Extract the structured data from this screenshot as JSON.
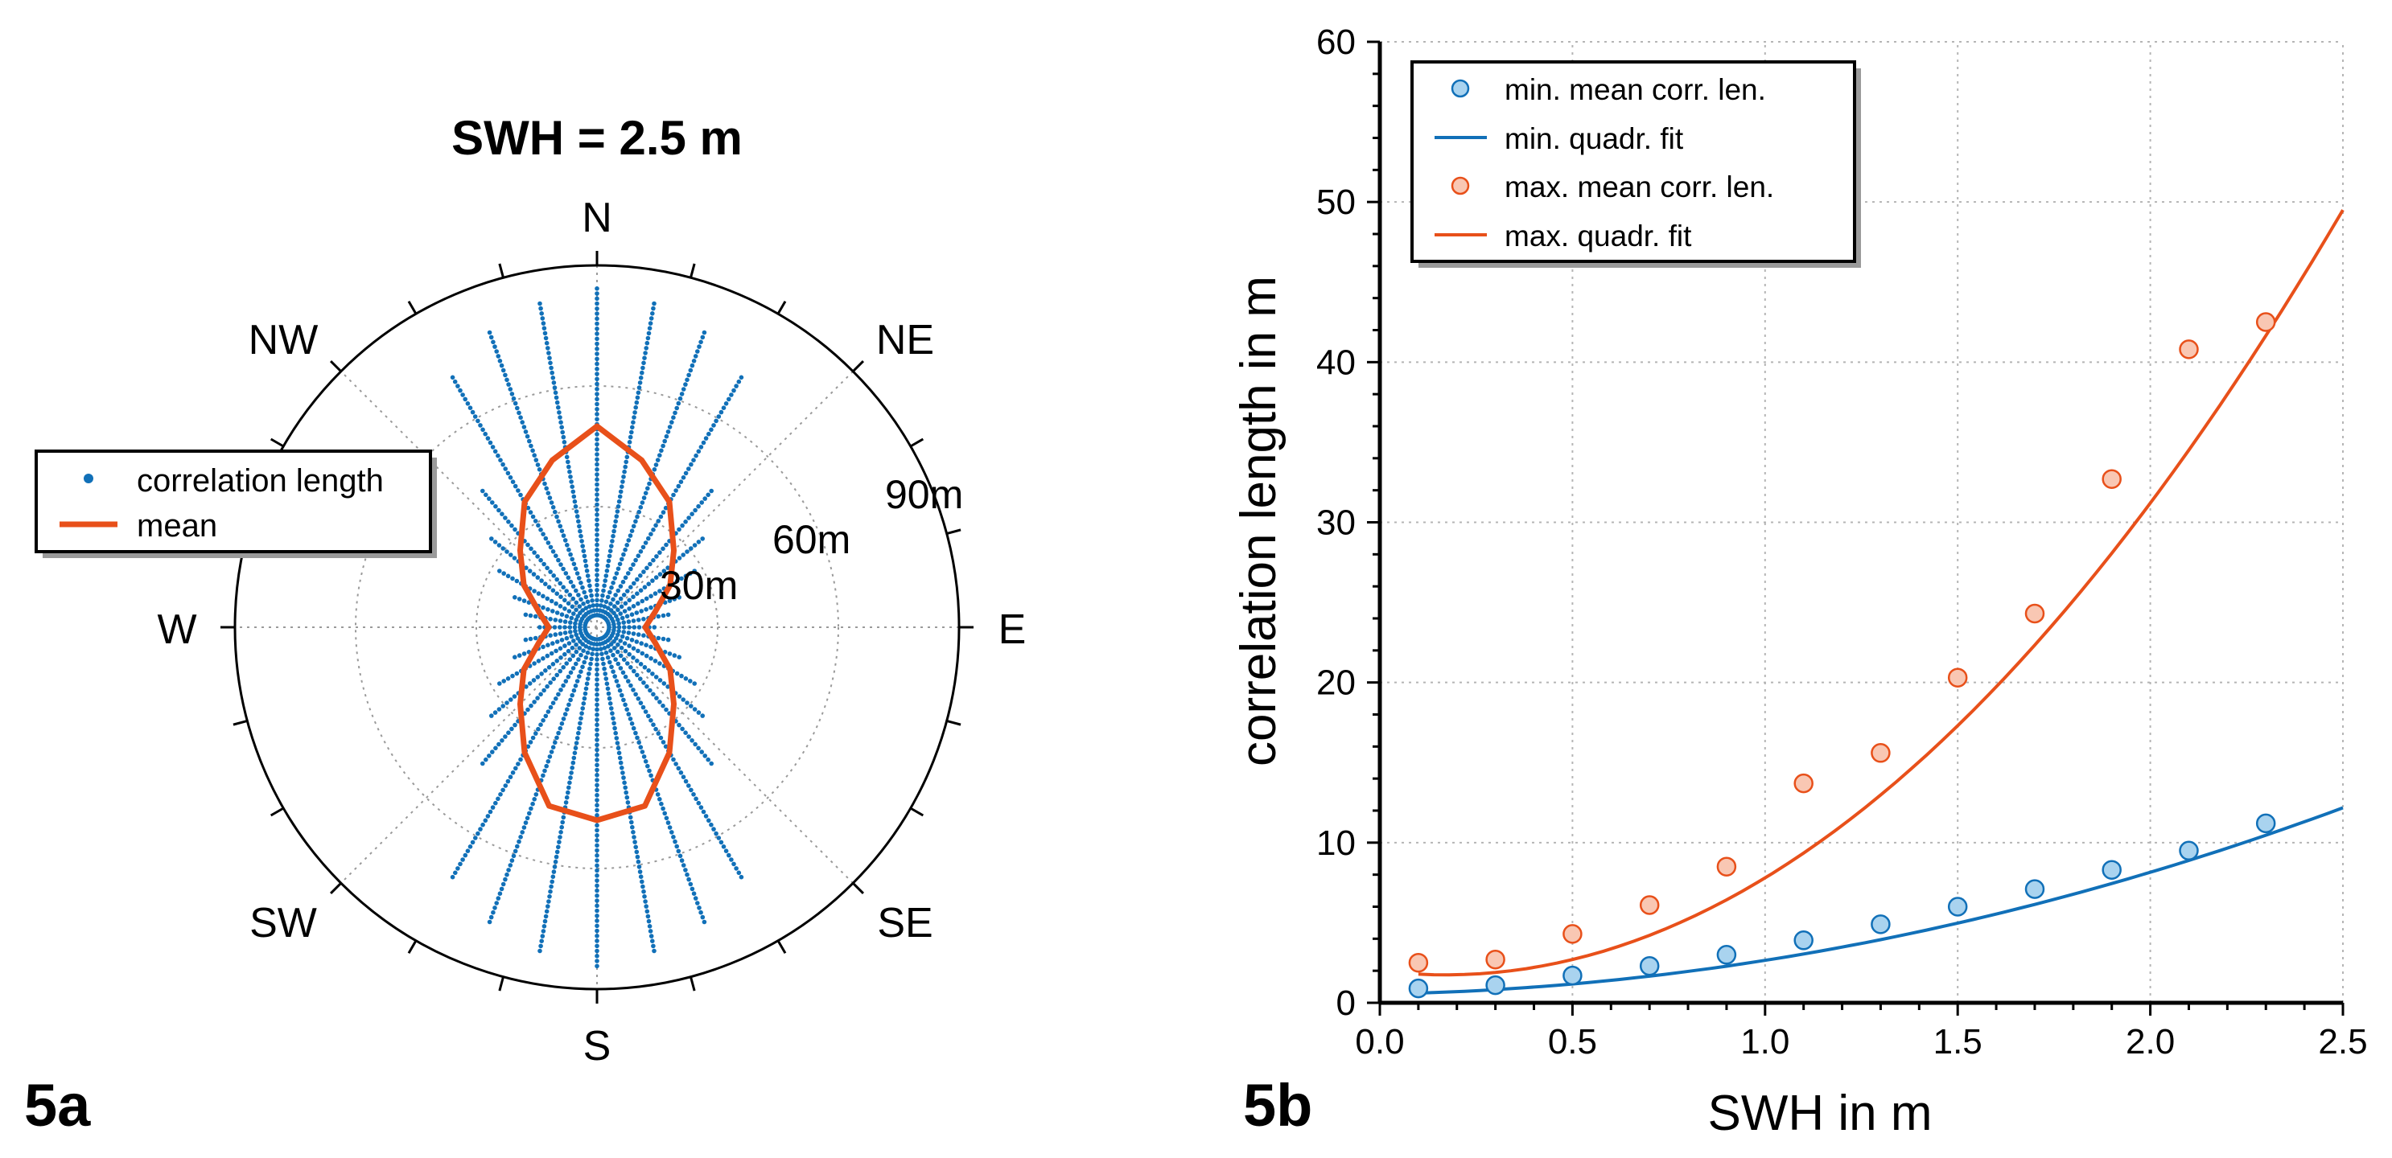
{
  "chart_data": [
    {
      "panel_label": "5a",
      "type": "scatter",
      "projection": "polar",
      "title": "SWH = 2.5 m",
      "directions": [
        "N",
        "NE",
        "E",
        "SE",
        "S",
        "SW",
        "W",
        "NW"
      ],
      "radial_ticks": [
        30,
        60,
        90
      ],
      "radial_tick_labels": [
        "30m",
        "60m",
        "90m"
      ],
      "rlim": [
        0,
        90
      ],
      "grid": true,
      "legend_position": "left",
      "legend": [
        {
          "label": "correlation length",
          "marker": "dot",
          "color": "#1170b8"
        },
        {
          "label": "mean",
          "marker": "line",
          "color": "#e8501a"
        }
      ],
      "mean_polygon": {
        "angles_deg": [
          0,
          15,
          30,
          45,
          60,
          75,
          90,
          105,
          120,
          135,
          150,
          165,
          180,
          195,
          210,
          225,
          240,
          255,
          270,
          285,
          300,
          315,
          330,
          345
        ],
        "radius_m": [
          50,
          43,
          36,
          27,
          21,
          15,
          12,
          15,
          21,
          27,
          36,
          46,
          48,
          46,
          36,
          27,
          21,
          15,
          12,
          15,
          21,
          27,
          36,
          43
        ]
      },
      "point_rays": {
        "angles_deg": [
          0,
          10,
          20,
          30,
          40,
          50,
          60,
          70,
          80,
          90,
          100,
          110,
          120,
          130,
          140,
          150,
          160,
          170,
          180,
          190,
          200,
          210,
          220,
          230,
          240,
          250,
          260,
          270,
          280,
          290,
          300,
          310,
          320,
          330,
          340,
          350
        ],
        "r_min_m": [
          3,
          3,
          3,
          3,
          3,
          3,
          3,
          3,
          3,
          3,
          3,
          3,
          3,
          3,
          3,
          3,
          3,
          3,
          3,
          3,
          3,
          3,
          3,
          3,
          3,
          3,
          3,
          3,
          3,
          3,
          3,
          3,
          3,
          3,
          3,
          3
        ],
        "r_max_m": [
          85,
          82,
          78,
          72,
          45,
          35,
          28,
          22,
          18,
          15,
          18,
          22,
          28,
          35,
          45,
          72,
          78,
          82,
          85,
          82,
          78,
          72,
          45,
          35,
          28,
          22,
          18,
          15,
          18,
          22,
          28,
          35,
          45,
          72,
          78,
          82
        ]
      },
      "colors": {
        "points": "#1170b8",
        "mean": "#e8501a"
      }
    },
    {
      "panel_label": "5b",
      "type": "scatter",
      "title": "",
      "xlabel": "SWH in m",
      "ylabel": "correlation length in m",
      "xlim": [
        0,
        2.5
      ],
      "ylim": [
        0,
        60
      ],
      "xticks": [
        0.0,
        0.5,
        1.0,
        1.5,
        2.0,
        2.5
      ],
      "xtick_labels": [
        "0.0",
        "0.5",
        "1.0",
        "1.5",
        "2.0",
        "2.5"
      ],
      "yticks": [
        0,
        10,
        20,
        30,
        40,
        50,
        60
      ],
      "ytick_labels": [
        "0",
        "10",
        "20",
        "30",
        "40",
        "50",
        "60"
      ],
      "grid": true,
      "legend_position": "top-left",
      "legend": [
        {
          "label": "min. mean corr. len.",
          "marker": "circle",
          "color": "#1170b8"
        },
        {
          "label": "min. quadr. fit",
          "marker": "line",
          "color": "#1170b8"
        },
        {
          "label": "max. mean corr. len.",
          "marker": "circle",
          "color": "#e8501a"
        },
        {
          "label": "max. quadr. fit",
          "marker": "line",
          "color": "#e8501a"
        }
      ],
      "series": [
        {
          "name": "min. mean corr. len.",
          "kind": "points",
          "color": "#1170b8",
          "fill": "#a9d3ef",
          "x": [
            0.1,
            0.3,
            0.5,
            0.7,
            0.9,
            1.1,
            1.3,
            1.5,
            1.7,
            1.9,
            2.1,
            2.3
          ],
          "y": [
            0.9,
            1.1,
            1.7,
            2.3,
            3.0,
            3.9,
            4.9,
            6.0,
            7.1,
            8.3,
            9.5,
            11.2
          ]
        },
        {
          "name": "max. mean corr. len.",
          "kind": "points",
          "color": "#e8501a",
          "fill": "#f9c7b3",
          "x": [
            0.1,
            0.3,
            0.5,
            0.7,
            0.9,
            1.1,
            1.3,
            1.5,
            1.7,
            1.9,
            2.1,
            2.3
          ],
          "y": [
            2.5,
            2.7,
            4.3,
            6.1,
            8.5,
            13.7,
            15.6,
            20.3,
            24.3,
            32.7,
            40.8,
            42.5
          ]
        },
        {
          "name": "min. quadr. fit",
          "kind": "quadratic",
          "color": "#1170b8",
          "coefficients": [
            0.55,
            0.4,
            1.7
          ],
          "x_range": [
            0.1,
            2.5
          ]
        },
        {
          "name": "max. quadr. fit",
          "kind": "quadratic",
          "color": "#e8501a",
          "coefficients": [
            2.0,
            -3.0,
            8.8
          ],
          "x_range": [
            0.1,
            2.5
          ]
        }
      ]
    }
  ]
}
